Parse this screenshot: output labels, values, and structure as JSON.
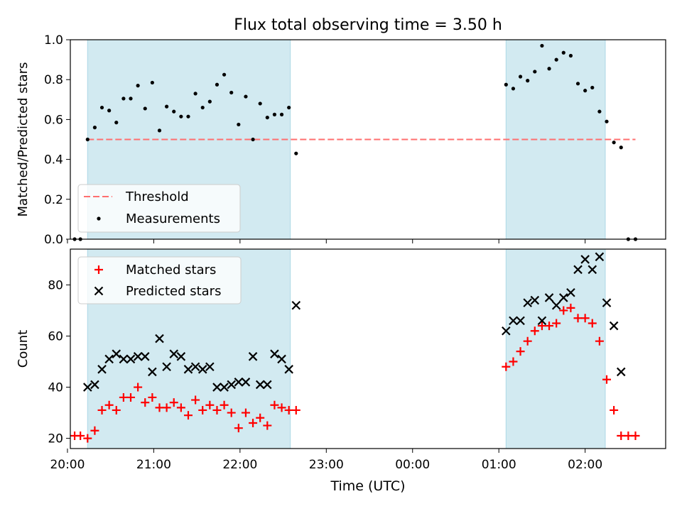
{
  "figure": {
    "title": "Flux total observing time = 3.50 h",
    "xlabel": "Time (UTC)"
  },
  "colors": {
    "shade": "#add8e6",
    "threshold": "#ff6f6f",
    "measurement": "#000000",
    "matched": "#ff0000",
    "predicted": "#000000"
  },
  "chart_data": [
    {
      "type": "scatter",
      "panel": "top",
      "ylabel": "Matched/Predicted stars",
      "xlim": [
        "20:02",
        "02:56"
      ],
      "ylim": [
        0,
        1.0
      ],
      "xticks": [
        "20:00",
        "21:00",
        "22:00",
        "23:00",
        "00:00",
        "01:00",
        "02:00"
      ],
      "yticks": [
        "0.0",
        "0.2",
        "0.4",
        "0.6",
        "0.8",
        "1.0"
      ],
      "shaded_ranges": [
        [
          "20:14",
          "22:35"
        ],
        [
          "01:05",
          "02:14"
        ]
      ],
      "threshold": {
        "name": "Threshold",
        "value": 0.5
      },
      "legend": {
        "position": "lower-left",
        "entries": [
          "Threshold",
          "Measurements"
        ]
      },
      "series": [
        {
          "name": "Measurements",
          "marker": "dot",
          "points": [
            [
              "20:05",
              0.0
            ],
            [
              "20:09",
              0.0
            ],
            [
              "20:14",
              0.5
            ],
            [
              "20:19",
              0.56
            ],
            [
              "20:24",
              0.66
            ],
            [
              "20:29",
              0.645
            ],
            [
              "20:34",
              0.585
            ],
            [
              "20:39",
              0.705
            ],
            [
              "20:44",
              0.705
            ],
            [
              "20:49",
              0.77
            ],
            [
              "20:54",
              0.655
            ],
            [
              "20:59",
              0.785
            ],
            [
              "21:04",
              0.545
            ],
            [
              "21:09",
              0.665
            ],
            [
              "21:14",
              0.64
            ],
            [
              "21:19",
              0.615
            ],
            [
              "21:24",
              0.615
            ],
            [
              "21:29",
              0.73
            ],
            [
              "21:34",
              0.66
            ],
            [
              "21:39",
              0.69
            ],
            [
              "21:44",
              0.775
            ],
            [
              "21:49",
              0.825
            ],
            [
              "21:54",
              0.735
            ],
            [
              "21:59",
              0.575
            ],
            [
              "22:04",
              0.715
            ],
            [
              "22:09",
              0.5
            ],
            [
              "22:14",
              0.68
            ],
            [
              "22:19",
              0.61
            ],
            [
              "22:24",
              0.625
            ],
            [
              "22:29",
              0.625
            ],
            [
              "22:34",
              0.66
            ],
            [
              "22:39",
              0.43
            ],
            [
              "01:05",
              0.775
            ],
            [
              "01:10",
              0.755
            ],
            [
              "01:15",
              0.815
            ],
            [
              "01:20",
              0.795
            ],
            [
              "01:25",
              0.84
            ],
            [
              "01:30",
              0.97
            ],
            [
              "01:35",
              0.855
            ],
            [
              "01:40",
              0.9
            ],
            [
              "01:45",
              0.935
            ],
            [
              "01:50",
              0.92
            ],
            [
              "01:55",
              0.78
            ],
            [
              "02:00",
              0.745
            ],
            [
              "02:05",
              0.76
            ],
            [
              "02:10",
              0.64
            ],
            [
              "02:15",
              0.59
            ],
            [
              "02:20",
              0.485
            ],
            [
              "02:25",
              0.46
            ],
            [
              "02:30",
              0.0
            ],
            [
              "02:35",
              0.0
            ]
          ]
        }
      ]
    },
    {
      "type": "scatter",
      "panel": "bottom",
      "ylabel": "Count",
      "xlim": [
        "20:02",
        "02:56"
      ],
      "ylim": [
        16,
        94
      ],
      "xticks": [
        "20:00",
        "21:00",
        "22:00",
        "23:00",
        "00:00",
        "01:00",
        "02:00"
      ],
      "yticks": [
        "20",
        "40",
        "60",
        "80"
      ],
      "shaded_ranges": [
        [
          "20:14",
          "22:35"
        ],
        [
          "01:05",
          "02:14"
        ]
      ],
      "legend": {
        "position": "top-left",
        "entries": [
          "Matched stars",
          "Predicted stars"
        ]
      },
      "series": [
        {
          "name": "Matched stars",
          "marker": "plus",
          "points": [
            [
              "20:05",
              21
            ],
            [
              "20:09",
              21
            ],
            [
              "20:14",
              20
            ],
            [
              "20:19",
              23
            ],
            [
              "20:24",
              31
            ],
            [
              "20:29",
              33
            ],
            [
              "20:34",
              31
            ],
            [
              "20:39",
              36
            ],
            [
              "20:44",
              36
            ],
            [
              "20:49",
              40
            ],
            [
              "20:54",
              34
            ],
            [
              "20:59",
              36
            ],
            [
              "21:04",
              32
            ],
            [
              "21:09",
              32
            ],
            [
              "21:14",
              34
            ],
            [
              "21:19",
              32
            ],
            [
              "21:24",
              29
            ],
            [
              "21:29",
              35
            ],
            [
              "21:34",
              31
            ],
            [
              "21:39",
              33
            ],
            [
              "21:44",
              31
            ],
            [
              "21:49",
              33
            ],
            [
              "21:54",
              30
            ],
            [
              "21:59",
              24
            ],
            [
              "22:04",
              30
            ],
            [
              "22:09",
              26
            ],
            [
              "22:14",
              28
            ],
            [
              "22:19",
              25
            ],
            [
              "22:24",
              33
            ],
            [
              "22:29",
              32
            ],
            [
              "22:34",
              31
            ],
            [
              "22:39",
              31
            ],
            [
              "01:05",
              48
            ],
            [
              "01:10",
              50
            ],
            [
              "01:15",
              54
            ],
            [
              "01:20",
              58
            ],
            [
              "01:25",
              62
            ],
            [
              "01:30",
              64
            ],
            [
              "01:35",
              64
            ],
            [
              "01:40",
              65
            ],
            [
              "01:45",
              70
            ],
            [
              "01:50",
              71
            ],
            [
              "01:55",
              67
            ],
            [
              "02:00",
              67
            ],
            [
              "02:05",
              65
            ],
            [
              "02:10",
              58
            ],
            [
              "02:15",
              43
            ],
            [
              "02:20",
              31
            ],
            [
              "02:25",
              21
            ],
            [
              "02:30",
              21
            ],
            [
              "02:35",
              21
            ]
          ]
        },
        {
          "name": "Predicted stars",
          "marker": "x",
          "points": [
            [
              "20:14",
              40
            ],
            [
              "20:19",
              41
            ],
            [
              "20:24",
              47
            ],
            [
              "20:29",
              51
            ],
            [
              "20:34",
              53
            ],
            [
              "20:39",
              51
            ],
            [
              "20:44",
              51
            ],
            [
              "20:49",
              52
            ],
            [
              "20:54",
              52
            ],
            [
              "20:59",
              46
            ],
            [
              "21:04",
              59
            ],
            [
              "21:09",
              48
            ],
            [
              "21:14",
              53
            ],
            [
              "21:19",
              52
            ],
            [
              "21:24",
              47
            ],
            [
              "21:29",
              48
            ],
            [
              "21:34",
              47
            ],
            [
              "21:39",
              48
            ],
            [
              "21:44",
              40
            ],
            [
              "21:49",
              40
            ],
            [
              "21:54",
              41
            ],
            [
              "21:59",
              42
            ],
            [
              "22:04",
              42
            ],
            [
              "22:09",
              52
            ],
            [
              "22:14",
              41
            ],
            [
              "22:19",
              41
            ],
            [
              "22:24",
              53
            ],
            [
              "22:29",
              51
            ],
            [
              "22:34",
              47
            ],
            [
              "22:39",
              72
            ],
            [
              "01:05",
              62
            ],
            [
              "01:10",
              66
            ],
            [
              "01:15",
              66
            ],
            [
              "01:20",
              73
            ],
            [
              "01:25",
              74
            ],
            [
              "01:30",
              66
            ],
            [
              "01:35",
              75
            ],
            [
              "01:40",
              72
            ],
            [
              "01:45",
              75
            ],
            [
              "01:50",
              77
            ],
            [
              "01:55",
              86
            ],
            [
              "02:00",
              90
            ],
            [
              "02:05",
              86
            ],
            [
              "02:10",
              91
            ],
            [
              "02:15",
              73
            ],
            [
              "02:20",
              64
            ],
            [
              "02:25",
              46
            ]
          ]
        }
      ]
    }
  ]
}
